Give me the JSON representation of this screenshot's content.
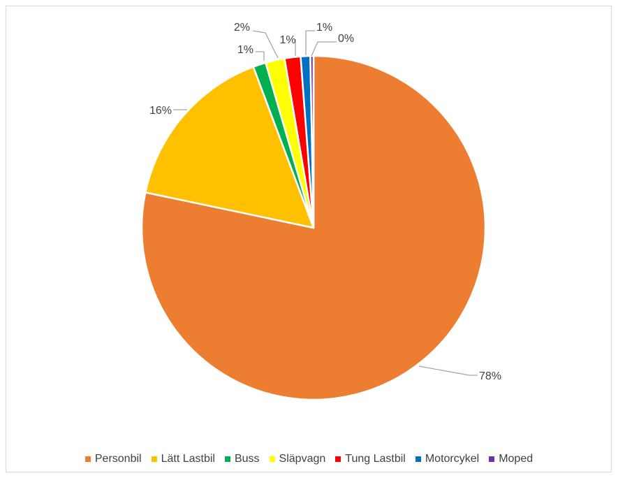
{
  "chart_data": {
    "type": "pie",
    "title": "",
    "categories": [
      "Personbil",
      "Lätt Lastbil",
      "Buss",
      "Släpvagn",
      "Tung Lastbil",
      "Motorcykel",
      "Moped"
    ],
    "values": [
      78.3,
      16.0,
      1.2,
      1.8,
      1.5,
      0.9,
      0.3
    ],
    "data_labels": [
      "78%",
      "16%",
      "1%",
      "2%",
      "1%",
      "1%",
      "0%"
    ],
    "colors": [
      "#ED7D31",
      "#FFC000",
      "#00B050",
      "#FFFF00",
      "#FF0000",
      "#0070C0",
      "#7030A0"
    ],
    "start_angle_deg": 0,
    "direction": "clockwise",
    "legend_position": "bottom"
  }
}
